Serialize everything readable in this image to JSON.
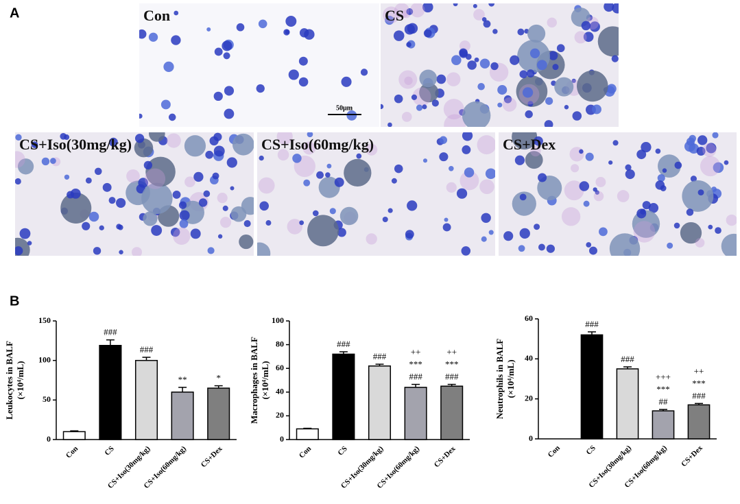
{
  "panel_labels": [
    "A",
    "B"
  ],
  "micrographs": [
    {
      "label": "Con"
    },
    {
      "label": "CS"
    },
    {
      "label": "CS+Iso(30mg/kg)"
    },
    {
      "label": "CS+Iso(60mg/kg)"
    },
    {
      "label": "CS+Dex"
    }
  ],
  "scale_bar": "50µm",
  "chart_data": [
    {
      "type": "bar",
      "ylabel": [
        "Leukocytes in BALF",
        "(×10⁴/mL)"
      ],
      "categories": [
        "Con",
        "CS",
        "CS+Iso(30mg/kg)",
        "CS+Iso(60mg/kg)",
        "CS+Dex"
      ],
      "values": [
        10,
        119,
        100,
        60,
        65
      ],
      "errors": [
        1,
        7,
        4,
        6,
        3
      ],
      "colors": [
        "#ffffff",
        "#000000",
        "#d9d9d9",
        "#a3a3ad",
        "#7f7f7f"
      ],
      "annotations": [
        [],
        [
          "###"
        ],
        [
          "###"
        ],
        [
          "**"
        ],
        [
          "*"
        ]
      ],
      "ylim": [
        0,
        150
      ],
      "yticks": [
        0,
        50,
        100,
        150
      ]
    },
    {
      "type": "bar",
      "ylabel": [
        "Macrophages in BALF",
        "(×10⁴/mL)"
      ],
      "categories": [
        "Con",
        "CS",
        "CS+Iso(30mg/kg)",
        "CS+Iso(60mg/kg)",
        "CS+Dex"
      ],
      "values": [
        9,
        72,
        62,
        44,
        45
      ],
      "errors": [
        0.5,
        2,
        1.5,
        2.5,
        1.5
      ],
      "colors": [
        "#ffffff",
        "#000000",
        "#d9d9d9",
        "#a3a3ad",
        "#7f7f7f"
      ],
      "annotations": [
        [],
        [
          "###"
        ],
        [
          "###"
        ],
        [
          "++",
          "***",
          "###"
        ],
        [
          "++",
          "***",
          "###"
        ]
      ],
      "ylim": [
        0,
        100
      ],
      "yticks": [
        0,
        20,
        40,
        60,
        80,
        100
      ]
    },
    {
      "type": "bar",
      "ylabel": [
        "Neutrophils in BALF",
        "(×10⁴/mL)"
      ],
      "categories": [
        "Con",
        "CS",
        "CS+Iso(30mg/kg)",
        "CS+Iso(60mg/kg)",
        "CS+Dex"
      ],
      "values": [
        0,
        52,
        35,
        14,
        17
      ],
      "errors": [
        0,
        1.5,
        1,
        0.7,
        0.7
      ],
      "colors": [
        "#ffffff",
        "#000000",
        "#d9d9d9",
        "#a3a3ad",
        "#7f7f7f"
      ],
      "annotations": [
        [],
        [
          "###"
        ],
        [
          "###"
        ],
        [
          "+++",
          "***",
          "##"
        ],
        [
          "++",
          "***",
          "###"
        ]
      ],
      "ylim": [
        0,
        60
      ],
      "yticks": [
        0,
        20,
        40,
        60
      ]
    }
  ]
}
